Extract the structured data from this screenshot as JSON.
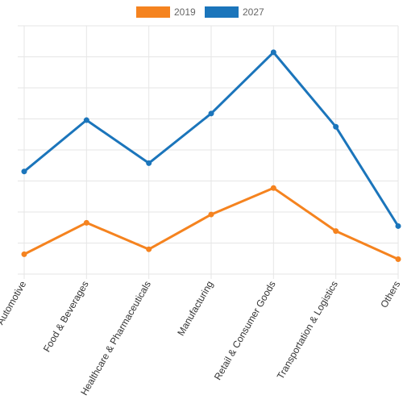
{
  "chart_data": {
    "type": "line",
    "categories": [
      "Automotive",
      "Food & Beverages",
      "Healthcare & Pharmaceuticals",
      "Manufacturing",
      "Retail & Consumer Goods",
      "Transportation & Logistics",
      "Others"
    ],
    "series": [
      {
        "name": "2019",
        "color": "#f5831f",
        "values": [
          0.6,
          1.55,
          0.75,
          1.8,
          2.6,
          1.3,
          0.45
        ]
      },
      {
        "name": "2027",
        "color": "#1b75bb",
        "values": [
          3.1,
          4.65,
          3.35,
          4.85,
          6.7,
          4.45,
          1.45
        ]
      }
    ],
    "ylim": [
      0,
      7.5
    ],
    "grid": true,
    "legend": "top-center",
    "title": "",
    "xlabel": "",
    "ylabel": ""
  }
}
